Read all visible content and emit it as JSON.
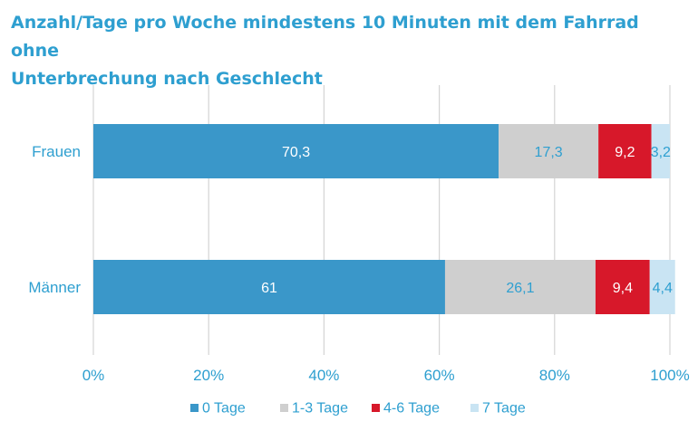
{
  "chart_data": {
    "type": "bar",
    "orientation": "horizontal",
    "stacked": true,
    "title": "Anzahl/Tage pro Woche mindestens 10 Minuten mit dem Fahrrad ohne Unterbrechung nach Geschlecht",
    "title_lines": [
      "Anzahl/Tage pro Woche mindestens 10 Minuten mit dem Fahrrad ohne",
      "Unterbrechung nach Geschlecht"
    ],
    "categories": [
      "Frauen",
      "Männer"
    ],
    "series": [
      {
        "name": "0 Tage",
        "color": "#3a97c9",
        "label_color": "#ffffff",
        "values": [
          70.3,
          61
        ],
        "labels": [
          "70,3",
          "61"
        ]
      },
      {
        "name": "1-3 Tage",
        "color": "#cfcfcf",
        "label_color": "#2e9fd0",
        "values": [
          17.3,
          26.1
        ],
        "labels": [
          "17,3",
          "26,1"
        ]
      },
      {
        "name": "4-6 Tage",
        "color": "#d7182a",
        "label_color": "#ffffff",
        "values": [
          9.2,
          9.4
        ],
        "labels": [
          "9,2",
          "9,4"
        ]
      },
      {
        "name": "7 Tage",
        "color": "#c9e4f3",
        "label_color": "#2e9fd0",
        "values": [
          3.2,
          4.4
        ],
        "labels": [
          "3,2",
          "4,4"
        ]
      }
    ],
    "xlim": [
      0,
      100
    ],
    "x_ticks": [
      0,
      20,
      40,
      60,
      80,
      100
    ],
    "x_tick_labels": [
      "0%",
      "20%",
      "40%",
      "60%",
      "80%",
      "100%"
    ],
    "grid": true,
    "legend_position": "bottom",
    "xlabel": "",
    "ylabel": ""
  }
}
